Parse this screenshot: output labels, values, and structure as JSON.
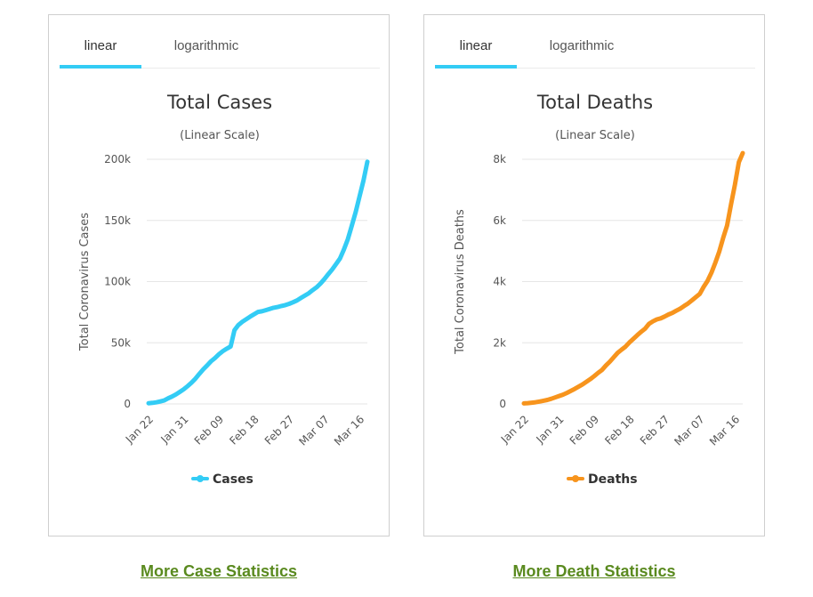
{
  "panels": [
    {
      "tabs": {
        "linear": "linear",
        "log": "logarithmic"
      },
      "link": "More Case Statistics"
    },
    {
      "tabs": {
        "linear": "linear",
        "log": "logarithmic"
      },
      "link": "More Death Statistics"
    }
  ],
  "chart_data": [
    {
      "type": "line",
      "title": "Total Cases",
      "subtitle": "(Linear Scale)",
      "xlabel": "",
      "ylabel": "Total Coronavirus Cases",
      "ylim": [
        0,
        200000
      ],
      "yticks": [
        0,
        50000,
        100000,
        150000,
        200000
      ],
      "ytick_labels": [
        "0",
        "50k",
        "100k",
        "150k",
        "200k"
      ],
      "x": [
        "Jan 22",
        "Jan 23",
        "Jan 24",
        "Jan 25",
        "Jan 26",
        "Jan 27",
        "Jan 28",
        "Jan 29",
        "Jan 30",
        "Jan 31",
        "Feb 01",
        "Feb 02",
        "Feb 03",
        "Feb 04",
        "Feb 05",
        "Feb 06",
        "Feb 07",
        "Feb 08",
        "Feb 09",
        "Feb 10",
        "Feb 11",
        "Feb 12",
        "Feb 13",
        "Feb 14",
        "Feb 15",
        "Feb 16",
        "Feb 17",
        "Feb 18",
        "Feb 19",
        "Feb 20",
        "Feb 21",
        "Feb 22",
        "Feb 23",
        "Feb 24",
        "Feb 25",
        "Feb 26",
        "Feb 27",
        "Feb 28",
        "Feb 29",
        "Mar 01",
        "Mar 02",
        "Mar 03",
        "Mar 04",
        "Mar 05",
        "Mar 06",
        "Mar 07",
        "Mar 08",
        "Mar 09",
        "Mar 10",
        "Mar 11",
        "Mar 12",
        "Mar 13",
        "Mar 14",
        "Mar 15",
        "Mar 16",
        "Mar 17",
        "Mar 18"
      ],
      "xtick_labels": [
        "Jan 22",
        "Jan 31",
        "Feb 09",
        "Feb 18",
        "Feb 27",
        "Mar 07",
        "Mar 16"
      ],
      "series": [
        {
          "name": "Cases",
          "color": "#33ccf5",
          "values": [
            580,
            845,
            1317,
            2015,
            2800,
            4581,
            6058,
            7813,
            9823,
            11950,
            14553,
            17391,
            20630,
            24554,
            28276,
            31481,
            34886,
            37558,
            40554,
            43103,
            45171,
            46997,
            60327,
            64543,
            67103,
            69265,
            71332,
            73327,
            75184,
            75700,
            76677,
            77673,
            78651,
            79205,
            80087,
            80828,
            81820,
            83112,
            84615,
            86604,
            88585,
            90443,
            93016,
            95314,
            98425,
            102050,
            106099,
            109991,
            114381,
            118948,
            126214,
            134576,
            145483,
            156653,
            169593,
            182490,
            198000
          ]
        }
      ],
      "legend": "bottom-center"
    },
    {
      "type": "line",
      "title": "Total Deaths",
      "subtitle": "(Linear Scale)",
      "xlabel": "",
      "ylabel": "Total Coronavirus Deaths",
      "ylim": [
        0,
        8000
      ],
      "yticks": [
        0,
        2000,
        4000,
        6000,
        8000
      ],
      "ytick_labels": [
        "0",
        "2k",
        "4k",
        "6k",
        "8k"
      ],
      "x": [
        "Jan 22",
        "Jan 23",
        "Jan 24",
        "Jan 25",
        "Jan 26",
        "Jan 27",
        "Jan 28",
        "Jan 29",
        "Jan 30",
        "Jan 31",
        "Feb 01",
        "Feb 02",
        "Feb 03",
        "Feb 04",
        "Feb 05",
        "Feb 06",
        "Feb 07",
        "Feb 08",
        "Feb 09",
        "Feb 10",
        "Feb 11",
        "Feb 12",
        "Feb 13",
        "Feb 14",
        "Feb 15",
        "Feb 16",
        "Feb 17",
        "Feb 18",
        "Feb 19",
        "Feb 20",
        "Feb 21",
        "Feb 22",
        "Feb 23",
        "Feb 24",
        "Feb 25",
        "Feb 26",
        "Feb 27",
        "Feb 28",
        "Feb 29",
        "Mar 01",
        "Mar 02",
        "Mar 03",
        "Mar 04",
        "Mar 05",
        "Mar 06",
        "Mar 07",
        "Mar 08",
        "Mar 09",
        "Mar 10",
        "Mar 11",
        "Mar 12",
        "Mar 13",
        "Mar 14",
        "Mar 15",
        "Mar 16",
        "Mar 17",
        "Mar 18"
      ],
      "xtick_labels": [
        "Jan 22",
        "Jan 31",
        "Feb 09",
        "Feb 18",
        "Feb 27",
        "Mar 07",
        "Mar 16"
      ],
      "series": [
        {
          "name": "Deaths",
          "color": "#f7941d",
          "values": [
            17,
            25,
            41,
            56,
            80,
            106,
            132,
            170,
            213,
            259,
            304,
            362,
            426,
            492,
            565,
            638,
            724,
            813,
            910,
            1018,
            1115,
            1261,
            1383,
            1526,
            1669,
            1775,
            1873,
            2009,
            2126,
            2247,
            2360,
            2460,
            2618,
            2699,
            2763,
            2800,
            2858,
            2923,
            2977,
            3050,
            3117,
            3202,
            3285,
            3387,
            3494,
            3599,
            3827,
            4025,
            4296,
            4626,
            4981,
            5428,
            5833,
            6519,
            7164,
            7900,
            8200
          ]
        }
      ],
      "legend": "bottom-center"
    }
  ]
}
